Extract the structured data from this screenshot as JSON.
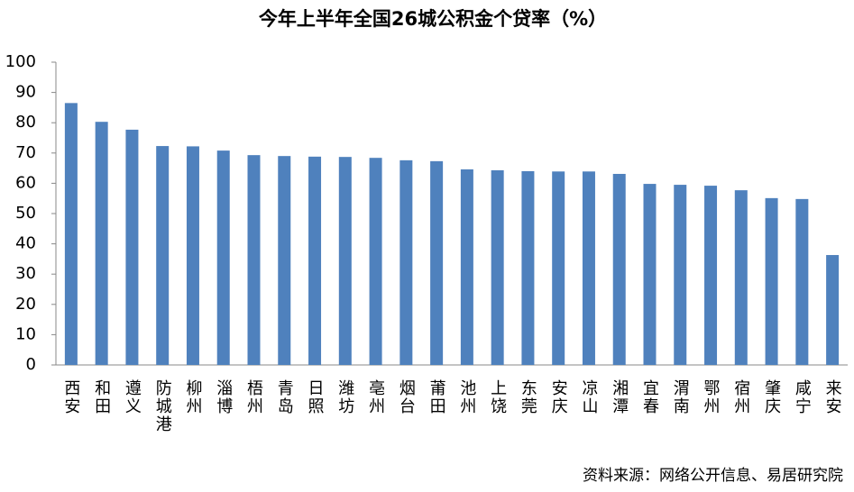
{
  "chart_data": {
    "type": "bar",
    "title": "今年上半年全国26城公积金个贷率（%）",
    "source": "资料来源：网络公开信息、易居研究院",
    "categories": [
      "西安",
      "和田",
      "遵义",
      "防城港",
      "柳州",
      "淄博",
      "梧州",
      "青岛",
      "日照",
      "潍坊",
      "亳州",
      "烟台",
      "莆田",
      "池州",
      "上饶",
      "东莞",
      "安庆",
      "凉山",
      "湘潭",
      "宜春",
      "渭南",
      "鄂州",
      "宿州",
      "肇庆",
      "咸宁",
      "来安"
    ],
    "values": [
      86.5,
      80.3,
      77.7,
      72.3,
      72.2,
      70.8,
      69.3,
      69.0,
      68.8,
      68.7,
      68.4,
      67.6,
      67.3,
      64.6,
      64.3,
      64.0,
      63.9,
      63.9,
      63.1,
      59.8,
      59.5,
      59.2,
      57.7,
      55.1,
      54.8,
      36.3
    ],
    "color": "#4f81bd",
    "ylim": [
      0,
      100
    ],
    "yticks": [
      0,
      10,
      20,
      30,
      40,
      50,
      60,
      70,
      80,
      90,
      100
    ],
    "grid": false
  }
}
